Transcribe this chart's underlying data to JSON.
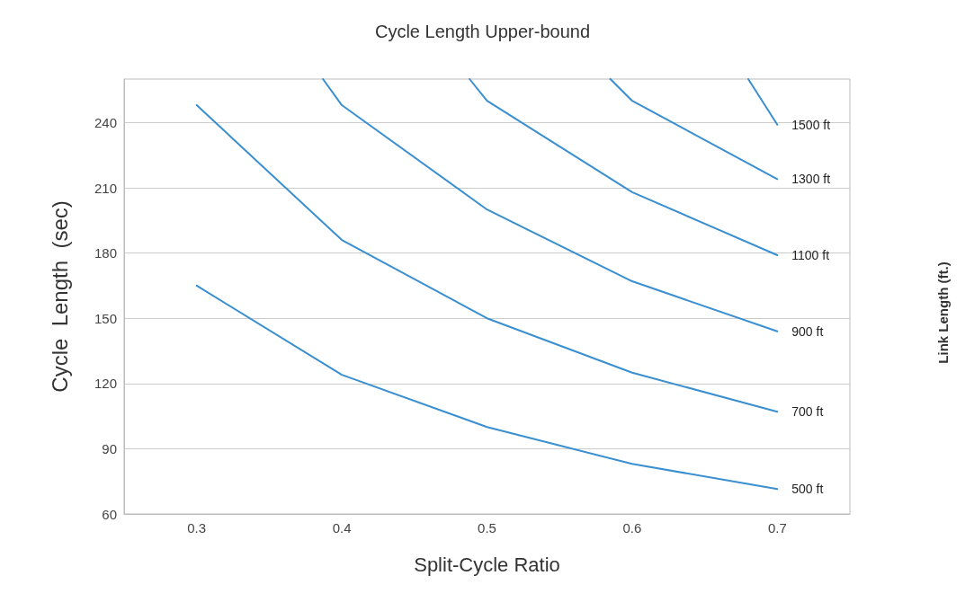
{
  "chart_data": {
    "type": "line",
    "title": "Cycle Length Upper-bound",
    "xlabel": "Split-Cycle Ratio",
    "ylabel": "Cycle  Length  (sec)",
    "annotations": [
      "Link Length (ft.)"
    ],
    "xlim": [
      0.25,
      0.75
    ],
    "xticks": [
      0.3,
      0.4,
      0.5,
      0.6,
      0.7
    ],
    "ylim": [
      60,
      260
    ],
    "yticks": [
      60,
      90,
      120,
      150,
      180,
      210,
      240
    ],
    "grid": "y",
    "legend": false,
    "marker": "none",
    "line_style": "solid",
    "series": [
      {
        "name": "500 ft",
        "color": "#3a8fd0",
        "x": [
          0.3,
          0.4,
          0.5,
          0.6,
          0.7
        ],
        "values": [
          165,
          124,
          100,
          83,
          71.5
        ]
      },
      {
        "name": "700 ft",
        "color": "#3a8fd0",
        "x": [
          0.3,
          0.4,
          0.5,
          0.6,
          0.7
        ],
        "values": [
          248,
          186,
          150,
          125,
          107
        ]
      },
      {
        "name": "900 ft",
        "color": "#3a8fd0",
        "x": [
          0.387,
          0.4,
          0.5,
          0.6,
          0.7
        ],
        "values": [
          260,
          248,
          200,
          167,
          144
        ]
      },
      {
        "name": "1100 ft",
        "color": "#3a8fd0",
        "x": [
          0.488,
          0.5,
          0.6,
          0.7
        ],
        "values": [
          260,
          250,
          208,
          179
        ]
      },
      {
        "name": "1300 ft",
        "color": "#3a8fd0",
        "x": [
          0.585,
          0.6,
          0.7
        ],
        "values": [
          260,
          250,
          214
        ]
      },
      {
        "name": "1500 ft",
        "color": "#3a8fd0",
        "x": [
          0.68,
          0.7
        ],
        "values": [
          260,
          239
        ]
      }
    ]
  }
}
